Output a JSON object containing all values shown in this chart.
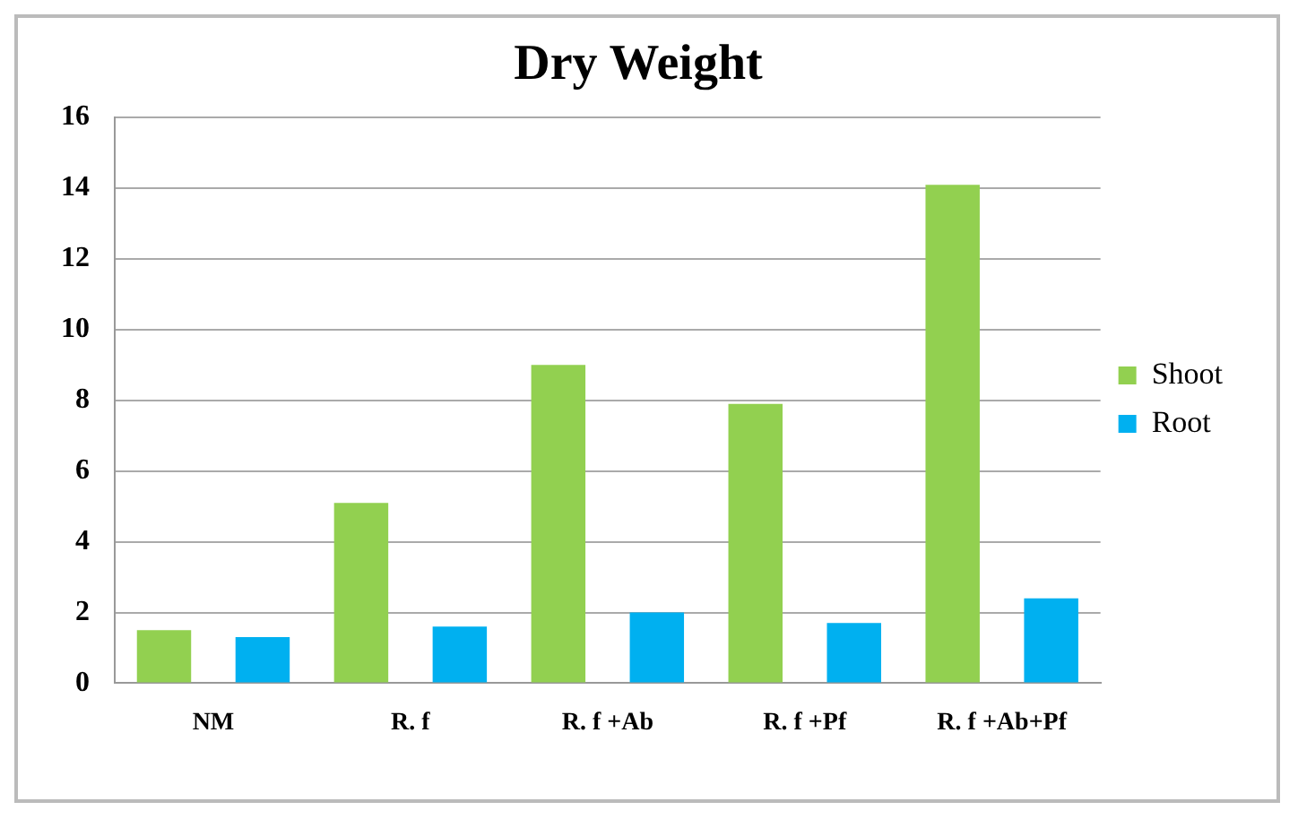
{
  "chart_data": {
    "type": "bar",
    "title": "Dry Weight",
    "categories": [
      "NM",
      "R. f",
      "R. f +Ab",
      "R. f +Pf",
      "R. f +Ab+Pf"
    ],
    "series": [
      {
        "name": "Shoot",
        "color": "#92d050",
        "values": [
          1.5,
          5.1,
          9.0,
          7.9,
          14.1
        ]
      },
      {
        "name": "Root",
        "color": "#00b0f0",
        "values": [
          1.3,
          1.6,
          2.0,
          1.7,
          2.4
        ]
      }
    ],
    "ylim": [
      0,
      16
    ],
    "yticks": [
      0,
      2,
      4,
      6,
      8,
      10,
      12,
      14,
      16
    ],
    "grid": "y",
    "legend": "right"
  }
}
